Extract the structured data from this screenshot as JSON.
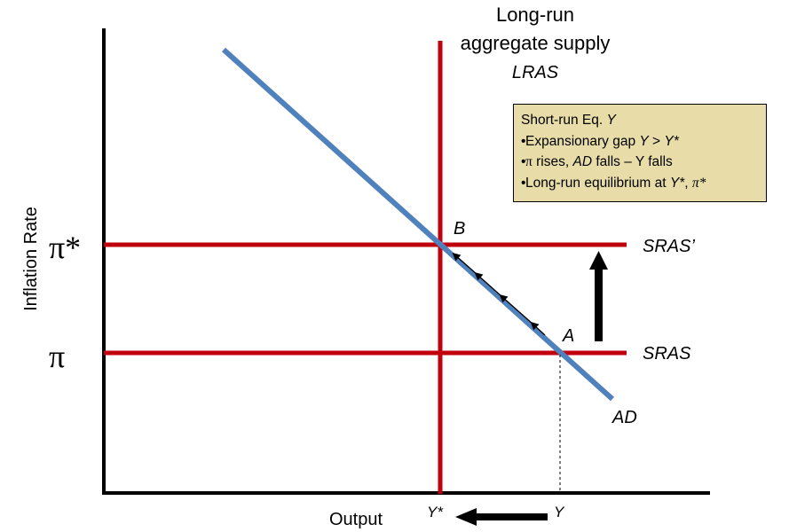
{
  "diagram": {
    "y_axis_label": "Inflation Rate",
    "x_axis_label": "Output",
    "lras_label_line1": "Long-run",
    "lras_label_line2": "aggregate supply",
    "lras_label_line3": "LRAS",
    "pi_star_label": "π*",
    "pi_label": "π",
    "sras_prime_label": "SRAS’",
    "sras_label": "SRAS",
    "ad_label": "AD",
    "point_a_label": "A",
    "point_b_label": "B",
    "y_star_tick": "Y*",
    "y_tick": "Y",
    "colors": {
      "sras_lines": "#c0000c",
      "lras_line": "#c0000c",
      "ad_line": "#4f81bd",
      "legend_bg": "#e8dca8",
      "arrows": "#000000"
    }
  },
  "legend": {
    "line1_text": "Short-run Eq. ",
    "line1_var": "Y",
    "line2_text": "Expansionary gap ",
    "line2_var1": "Y",
    "line2_mid": " > ",
    "line2_var2": "Y*",
    "line3_sym": "π",
    "line3_text1": " rises, ",
    "line3_var": "AD",
    "line3_text2": " falls – Y falls",
    "line4_text": "Long-run equilibrium at ",
    "line4_var1": "Y*",
    "line4_sep": ", ",
    "line4_var2": "π*"
  }
}
